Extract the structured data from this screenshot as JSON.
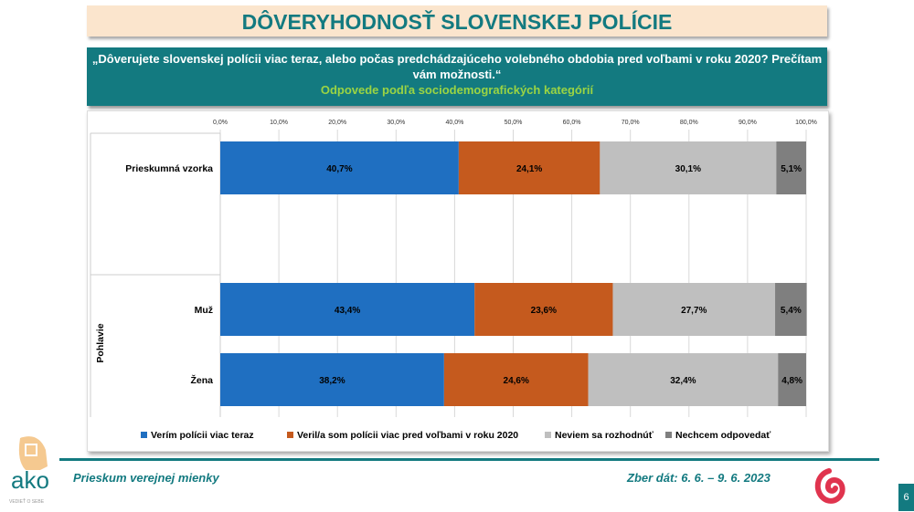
{
  "title": "DÔVERYHODNOSŤ SLOVENSKEJ POLÍCIE",
  "question": "„Dôverujete slovenskej polícii viac teraz, alebo počas predchádzajúceho volebného obdobia pred voľbami v roku 2020? Prečítam vám možnosti.“",
  "subtitle": "Odpovede podľa sociodemografických kategórií",
  "footer": {
    "left": "Prieskum verejnej mienky",
    "right": "Zber dát: 6. 6. – 9. 6. 2023",
    "page": "6",
    "logo_text": "ako",
    "logo_tagline": "VEDIEŤ O SEBE"
  },
  "chart_data": {
    "type": "bar",
    "orientation": "horizontal-stacked-100",
    "xlim": [
      0,
      100
    ],
    "xticks": [
      "0,0%",
      "10,0%",
      "20,0%",
      "30,0%",
      "40,0%",
      "50,0%",
      "60,0%",
      "70,0%",
      "80,0%",
      "90,0%",
      "100,0%"
    ],
    "categories": [
      "Prieskumná vzorka",
      "Muž",
      "Žena"
    ],
    "groups": [
      {
        "label": "",
        "categories": [
          "Prieskumná vzorka"
        ]
      },
      {
        "label": "Pohlavie",
        "categories": [
          "Muž",
          "Žena"
        ]
      }
    ],
    "series": [
      {
        "name": "Verím polícii viac teraz",
        "color": "#1f6fc1",
        "values": [
          40.7,
          43.4,
          38.2
        ]
      },
      {
        "name": "Veril/a som polícii viac pred voľbami v roku 2020",
        "color": "#c55a1e",
        "values": [
          24.1,
          23.6,
          24.6
        ]
      },
      {
        "name": "Neviem sa rozhodnúť",
        "color": "#bfbfbf",
        "values": [
          30.1,
          27.7,
          32.4
        ]
      },
      {
        "name": "Nechcem odpovedať",
        "color": "#7f7f7f",
        "values": [
          5.1,
          5.4,
          4.8
        ]
      }
    ],
    "legend": "bottom",
    "grid": true
  }
}
